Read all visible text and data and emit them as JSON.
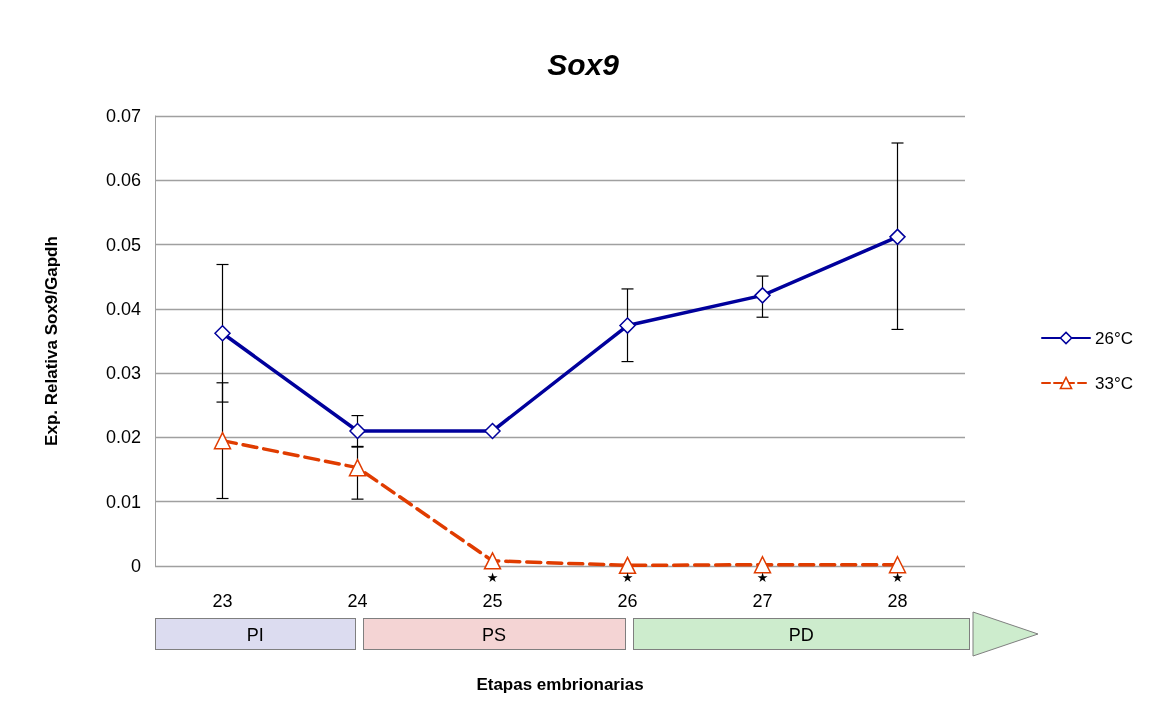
{
  "chart_data": {
    "type": "line",
    "title": "Sox9",
    "xlabel": "Etapas embrionarias",
    "ylabel": "Exp. Relativa Sox9/Gapdh",
    "categories": [
      "23",
      "24",
      "25",
      "26",
      "27",
      "28"
    ],
    "series": [
      {
        "name": "26°C",
        "color": "#00009c",
        "marker": "diamond",
        "line_style": "solid",
        "values": [
          0.0362,
          0.021,
          0.021,
          0.0374,
          0.0421,
          0.0512
        ],
        "errors": [
          0.0107,
          0.0024,
          null,
          [
            0.0318,
            0.0431
          ],
          [
            0.0387,
            0.0451
          ],
          [
            0.0368,
            0.0658
          ]
        ]
      },
      {
        "name": "33°C",
        "color": "#e03c00",
        "marker": "triangle",
        "line_style": "dashed",
        "values": [
          0.0195,
          0.0153,
          0.0008,
          0.0001,
          0.0002,
          0.0002
        ],
        "errors": [
          0.009,
          [
            0.0104,
            0.0185
          ],
          null,
          null,
          null,
          null
        ]
      }
    ],
    "ylim": [
      0,
      0.07
    ],
    "yticks": [
      0,
      0.01,
      0.02,
      0.03,
      0.04,
      0.05,
      0.06,
      0.07
    ],
    "grid": "y",
    "legend": "right",
    "annotations": [
      "PI",
      "PS",
      "PD",
      {
        "text": "★",
        "x": "25",
        "y": 0
      },
      {
        "text": "★",
        "x": "26",
        "y": 0
      },
      {
        "text": "★",
        "x": "27",
        "y": 0
      },
      {
        "text": "★",
        "x": "28",
        "y": 0
      }
    ]
  }
}
